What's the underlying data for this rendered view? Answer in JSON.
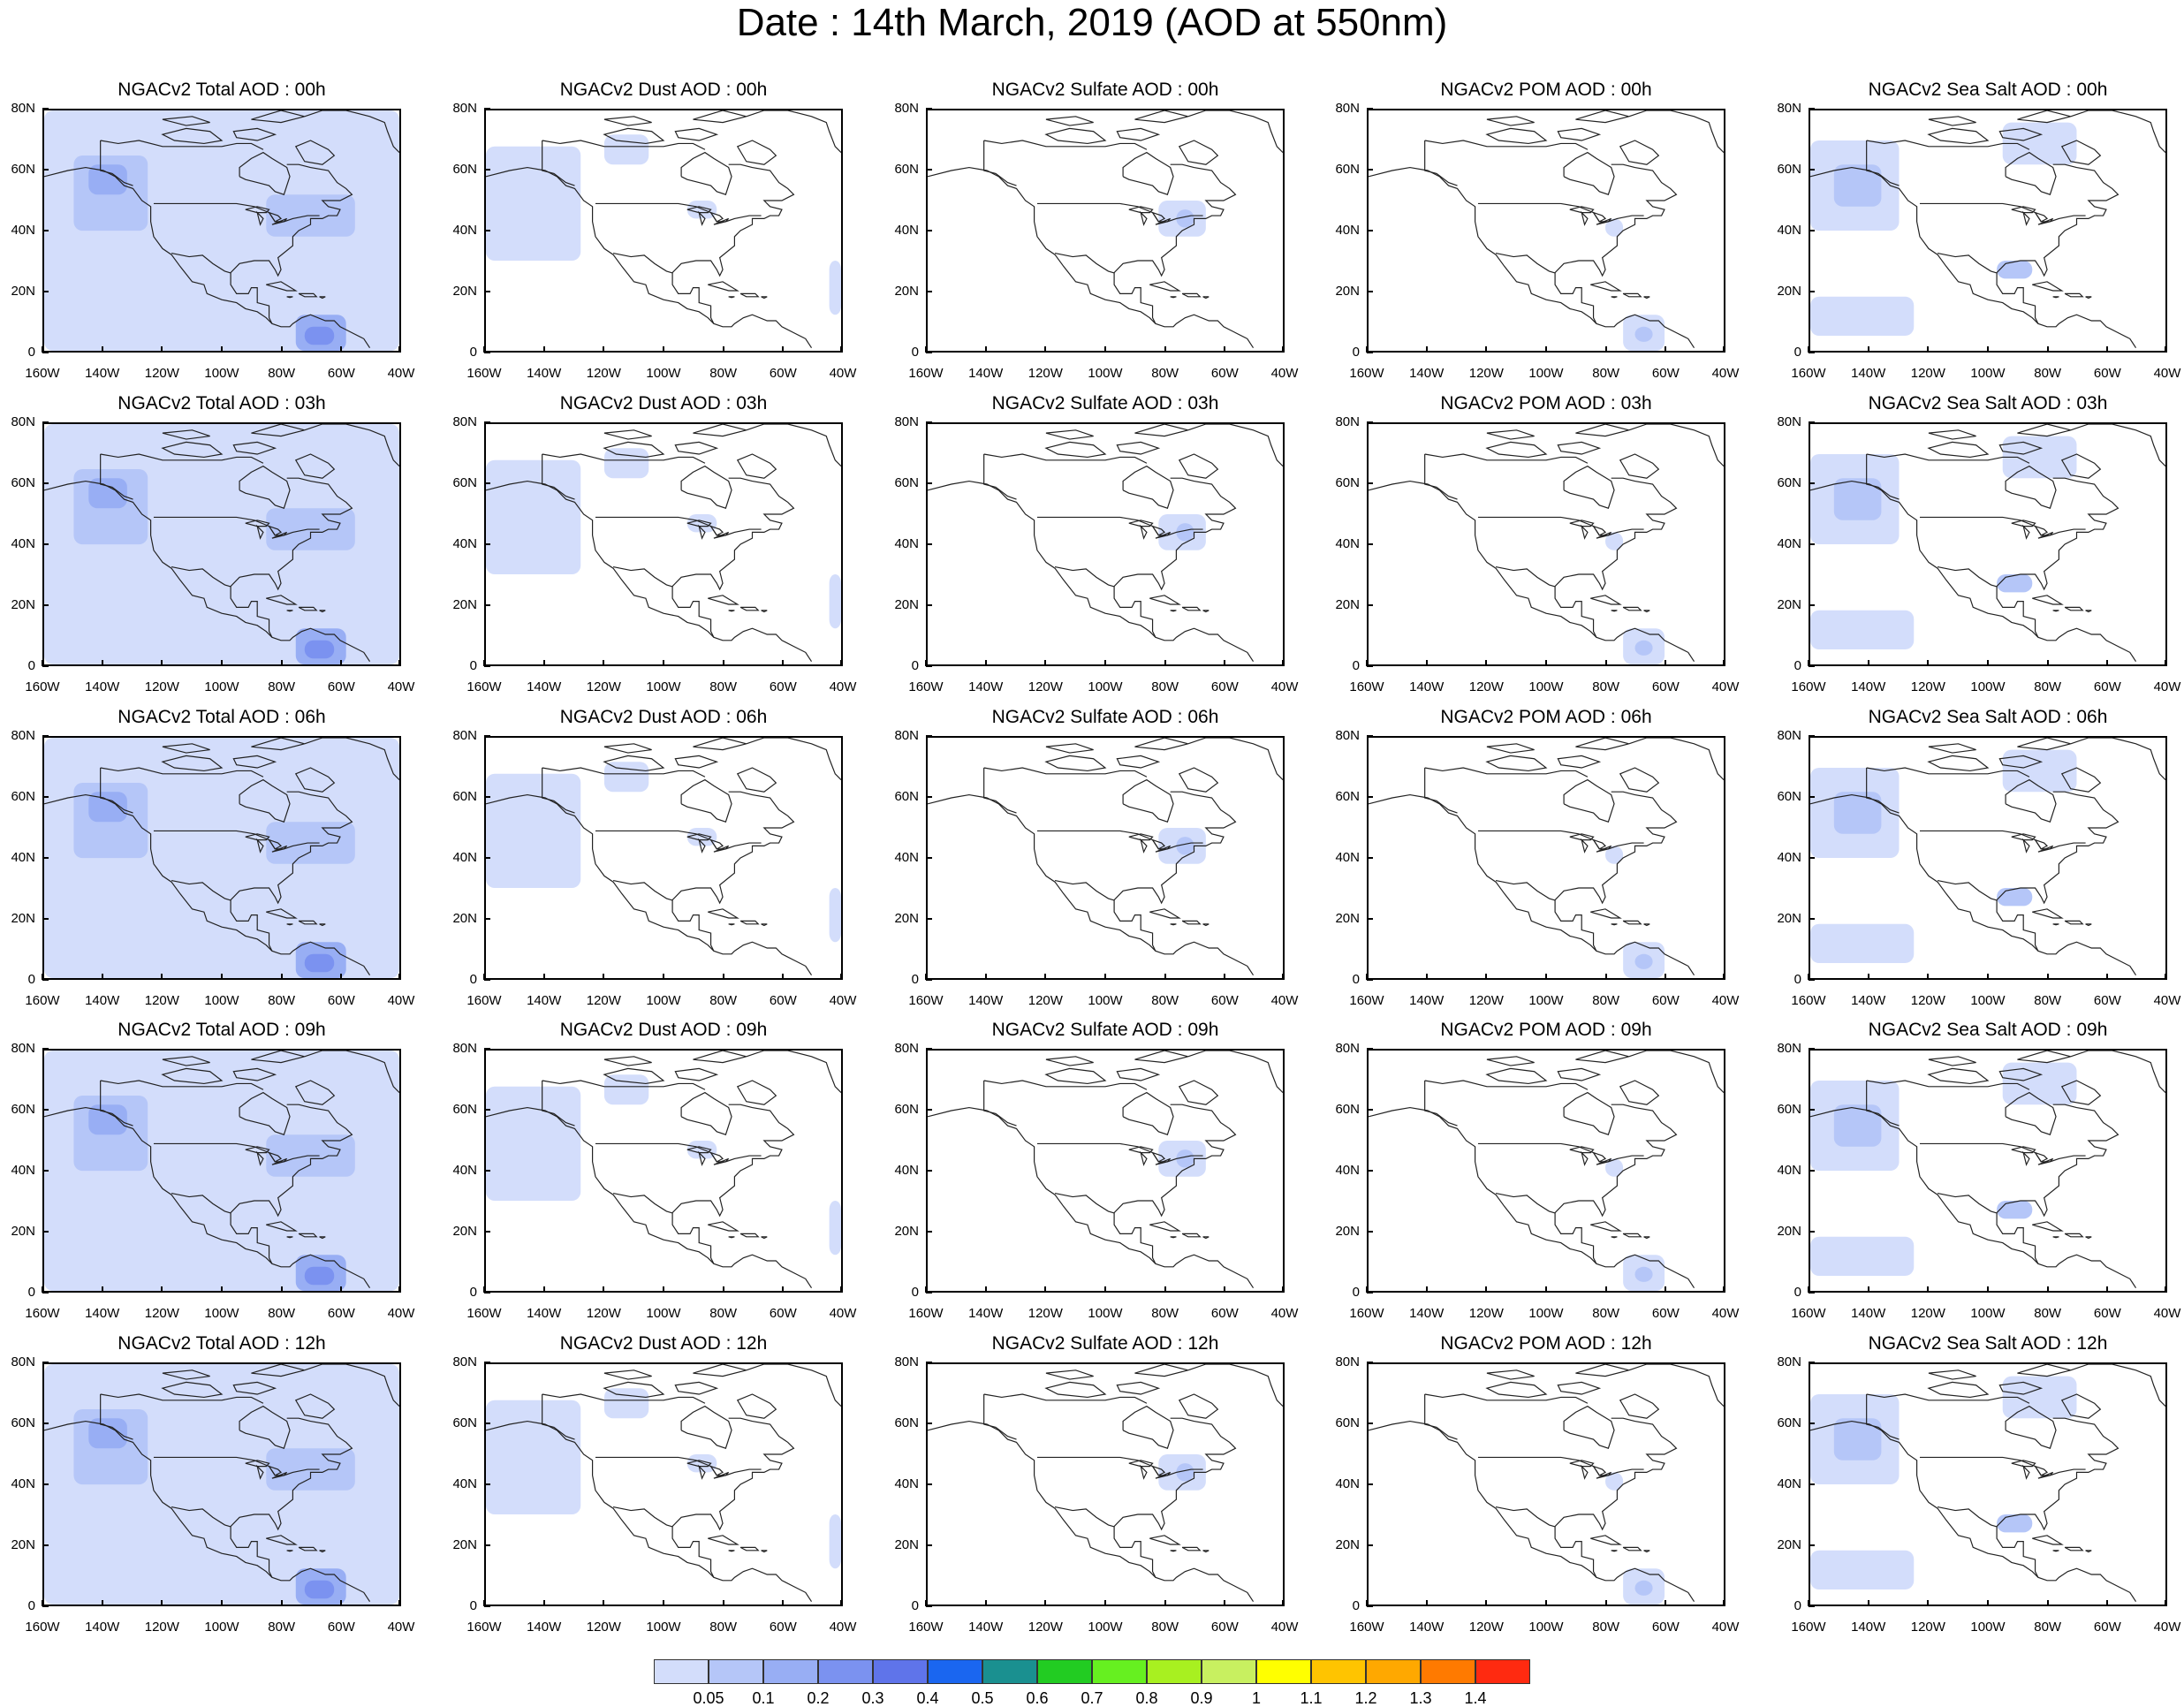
{
  "title": "Date : 14th March, 2019 (AOD at 550nm)",
  "axes": {
    "lat_ticks": [
      "80N",
      "60N",
      "40N",
      "20N",
      "0"
    ],
    "lon_ticks": [
      "160W",
      "140W",
      "120W",
      "100W",
      "80W",
      "60W",
      "40W"
    ],
    "lon_range": [
      -160,
      -40
    ],
    "lat_range": [
      0,
      80
    ]
  },
  "panels": [
    [
      "NGACv2 Total AOD : 00h",
      "NGACv2 Dust AOD : 00h",
      "NGACv2 Sulfate AOD : 00h",
      "NGACv2 POM AOD : 00h",
      "NGACv2 Sea Salt AOD : 00h"
    ],
    [
      "NGACv2 Total AOD : 03h",
      "NGACv2 Dust AOD : 03h",
      "NGACv2 Sulfate AOD : 03h",
      "NGACv2 POM AOD : 03h",
      "NGACv2 Sea Salt AOD : 03h"
    ],
    [
      "NGACv2 Total AOD : 06h",
      "NGACv2 Dust AOD : 06h",
      "NGACv2 Sulfate AOD : 06h",
      "NGACv2 POM AOD : 06h",
      "NGACv2 Sea Salt AOD : 06h"
    ],
    [
      "NGACv2 Total AOD : 09h",
      "NGACv2 Dust AOD : 09h",
      "NGACv2 Sulfate AOD : 09h",
      "NGACv2 POM AOD : 09h",
      "NGACv2 Sea Salt  AOD : 09h"
    ],
    [
      "NGACv2 Total AOD  : 12h",
      "NGACv2 Dust AOD : 12h",
      "NGACv2 Sulfate AOD : 12h",
      "NGACv2 POM  AOD : 12h",
      "NGACv2 Sea Salt  AOD : 12h"
    ]
  ],
  "colorbar": {
    "labels": [
      "0.05",
      "0.1",
      "0.2",
      "0.3",
      "0.4",
      "0.5",
      "0.6",
      "0.7",
      "0.8",
      "0.9",
      "1",
      "1.1",
      "1.2",
      "1.3",
      "1.4"
    ],
    "colors": [
      "#ffffff",
      "#d3ddfb",
      "#b5c6f8",
      "#98aef4",
      "#7b92f0",
      "#5f74ea",
      "#1a66f0",
      "#1a9090",
      "#22cc22",
      "#66f020",
      "#a8f020",
      "#c8f060",
      "#ffff00",
      "#ffc400",
      "#ffa800",
      "#ff7a00",
      "#ff2a10"
    ]
  },
  "fields": {
    "total": [
      {
        "lon": [
          -160,
          -40
        ],
        "lat": [
          0,
          80
        ],
        "level": 1
      },
      {
        "lon": [
          -150,
          -125
        ],
        "lat": [
          40,
          65
        ],
        "level": 2
      },
      {
        "lon": [
          -145,
          -132
        ],
        "lat": [
          52,
          62
        ],
        "level": 3
      },
      {
        "lon": [
          -85,
          -55
        ],
        "lat": [
          38,
          52
        ],
        "level": 2
      },
      {
        "lon": [
          -75,
          -58
        ],
        "lat": [
          0,
          12
        ],
        "level": 3
      },
      {
        "lon": [
          -72,
          -62
        ],
        "lat": [
          2,
          8
        ],
        "level": 4
      }
    ],
    "dust": [
      {
        "lon": [
          -160,
          -128
        ],
        "lat": [
          30,
          68
        ],
        "level": 1
      },
      {
        "lon": [
          -120,
          -105
        ],
        "lat": [
          62,
          72
        ],
        "level": 1
      },
      {
        "lon": [
          -92,
          -82
        ],
        "lat": [
          44,
          50
        ],
        "level": 1
      },
      {
        "lon": [
          -44,
          -40
        ],
        "lat": [
          12,
          30
        ],
        "level": 1
      }
    ],
    "sulfate": [
      {
        "lon": [
          -82,
          -66
        ],
        "lat": [
          38,
          50
        ],
        "level": 1
      },
      {
        "lon": [
          -76,
          -70
        ],
        "lat": [
          41,
          47
        ],
        "level": 2
      }
    ],
    "pom": [
      {
        "lon": [
          -74,
          -60
        ],
        "lat": [
          0,
          12
        ],
        "level": 1
      },
      {
        "lon": [
          -70,
          -64
        ],
        "lat": [
          3,
          8
        ],
        "level": 2
      },
      {
        "lon": [
          -80,
          -74
        ],
        "lat": [
          38,
          44
        ],
        "level": 1
      }
    ],
    "seasalt": [
      {
        "lon": [
          -160,
          -130
        ],
        "lat": [
          40,
          70
        ],
        "level": 1
      },
      {
        "lon": [
          -152,
          -136
        ],
        "lat": [
          48,
          62
        ],
        "level": 2
      },
      {
        "lon": [
          -160,
          -125
        ],
        "lat": [
          5,
          18
        ],
        "level": 1
      },
      {
        "lon": [
          -97,
          -85
        ],
        "lat": [
          24,
          30
        ],
        "level": 2
      },
      {
        "lon": [
          -95,
          -70
        ],
        "lat": [
          62,
          76
        ],
        "level": 1
      }
    ]
  }
}
